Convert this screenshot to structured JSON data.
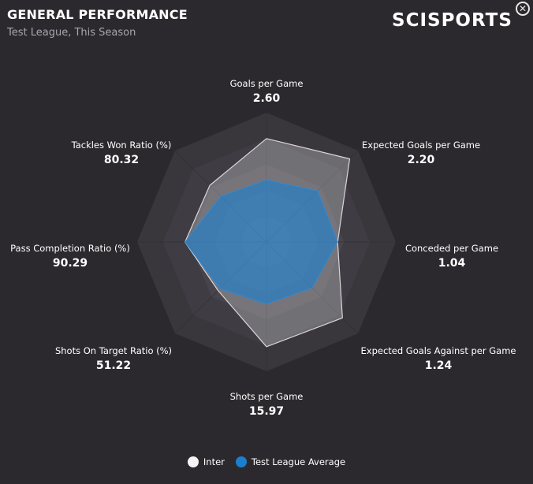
{
  "header": {
    "title": "GENERAL PERFORMANCE",
    "subtitle": "Test League, This Season",
    "logo_text": "SCISPORTS",
    "close_symbol": "✕"
  },
  "chart_data": {
    "type": "radar",
    "axes": [
      {
        "label": "Goals per Game",
        "value_label": "2.60"
      },
      {
        "label": "Expected Goals per Game",
        "value_label": "2.20"
      },
      {
        "label": "Conceded per Game",
        "value_label": "1.04"
      },
      {
        "label": "Expected Goals Against per Game",
        "value_label": "1.24"
      },
      {
        "label": "Shots per Game",
        "value_label": "15.97"
      },
      {
        "label": "Shots On Target Ratio (%)",
        "value_label": "51.22"
      },
      {
        "label": "Pass Completion Ratio (%)",
        "value_label": "90.29"
      },
      {
        "label": "Tackles Won Ratio (%)",
        "value_label": "80.32"
      }
    ],
    "series": [
      {
        "name": "Inter",
        "color": "#f5f5f5",
        "values": [
          0.8,
          0.91,
          0.55,
          0.83,
          0.81,
          0.53,
          0.63,
          0.62
        ]
      },
      {
        "name": "Test League Average",
        "color": "#1b7fd1",
        "values": [
          0.48,
          0.56,
          0.55,
          0.5,
          0.48,
          0.51,
          0.63,
          0.5
        ]
      }
    ],
    "rings": 5,
    "legend": "bottom"
  }
}
